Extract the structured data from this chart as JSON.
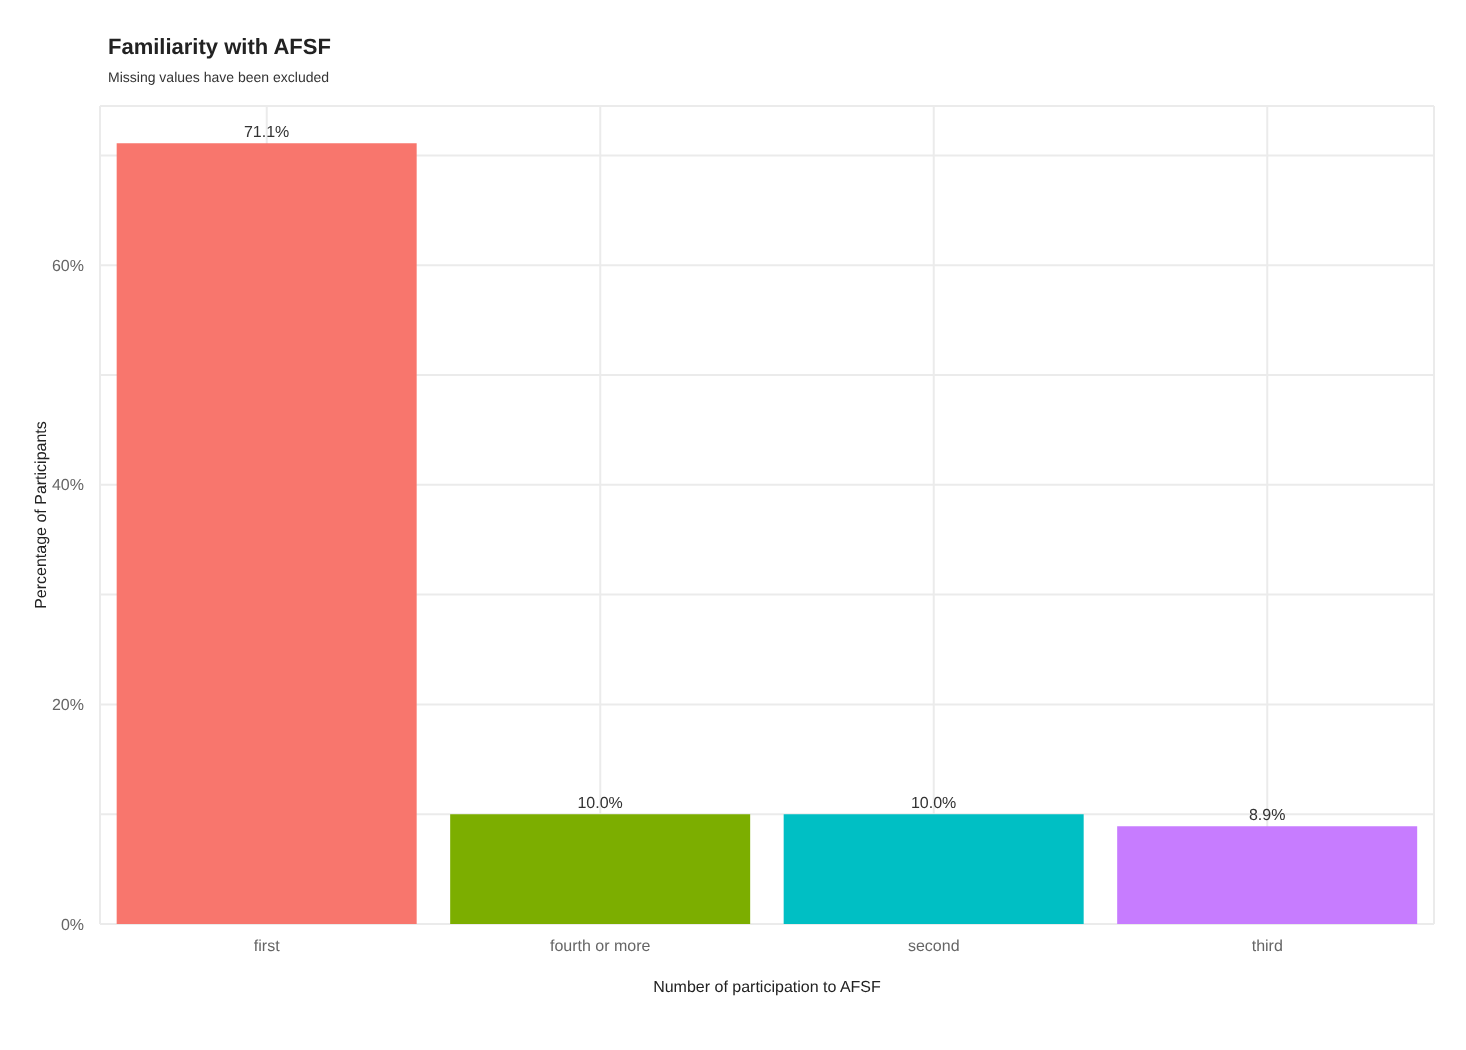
{
  "chart_data": {
    "type": "bar",
    "title": "Familiarity with AFSF",
    "subtitle": "Missing values have been excluded",
    "xlabel": "Number of participation to AFSF",
    "ylabel": "Percentage of Participants",
    "categories": [
      "first",
      "fourth or more",
      "second",
      "third"
    ],
    "values": [
      71.1,
      10.0,
      10.0,
      8.9
    ],
    "colors": [
      "#f8766d",
      "#7cae00",
      "#00bfc4",
      "#c77cff"
    ],
    "value_labels": [
      "71.1%",
      "10.0%",
      "10.0%",
      "8.9%"
    ],
    "ylim": [
      0,
      74.5
    ],
    "yticks": [
      {
        "value": 0,
        "label": "0%"
      },
      {
        "value": 10,
        "label": null
      },
      {
        "value": 20,
        "label": "20%"
      },
      {
        "value": 30,
        "label": null
      },
      {
        "value": 40,
        "label": "40%"
      },
      {
        "value": 50,
        "label": null
      },
      {
        "value": 60,
        "label": "60%"
      },
      {
        "value": 70,
        "label": null
      }
    ],
    "grid": true
  }
}
